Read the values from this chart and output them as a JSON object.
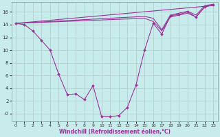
{
  "background_color": "#c8ecec",
  "grid_color": "#b0c8c8",
  "line_color": "#993399",
  "marker_color": "#993399",
  "xlabel": "Windchill (Refroidissement éolien,°C)",
  "xlim": [
    -0.5,
    23.5
  ],
  "ylim": [
    -1.2,
    17.5
  ],
  "yticks": [
    0,
    2,
    4,
    6,
    8,
    10,
    12,
    14,
    16
  ],
  "ytick_labels": [
    "-0",
    "2",
    "4",
    "6",
    "8",
    "10",
    "12",
    "14",
    "16"
  ],
  "xticks": [
    0,
    1,
    2,
    3,
    4,
    5,
    6,
    7,
    8,
    9,
    10,
    11,
    12,
    13,
    14,
    15,
    16,
    17,
    18,
    19,
    20,
    21,
    22,
    23
  ],
  "curve_main_x": [
    0,
    1,
    2,
    3,
    4,
    5,
    6,
    7,
    8,
    9,
    10,
    11,
    12,
    13,
    14,
    15,
    16,
    17,
    18,
    19,
    20,
    21,
    22,
    23
  ],
  "curve_main_y": [
    14.2,
    14.0,
    13.0,
    11.5,
    10.0,
    6.2,
    3.0,
    3.1,
    2.2,
    4.4,
    -0.5,
    -0.5,
    -0.3,
    1.0,
    4.5,
    10.0,
    14.2,
    12.5,
    15.4,
    15.6,
    16.0,
    15.2,
    16.8,
    17.1
  ],
  "curve_line1_x": [
    0,
    23
  ],
  "curve_line1_y": [
    14.2,
    17.0
  ],
  "curve_line2_x": [
    0,
    15,
    16,
    17,
    18,
    19,
    20,
    21,
    22,
    23
  ],
  "curve_line2_y": [
    14.2,
    15.0,
    14.5,
    13.0,
    15.2,
    15.5,
    15.8,
    15.2,
    16.8,
    17.1
  ],
  "curve_line3_x": [
    0,
    15,
    16,
    17,
    18,
    19,
    20,
    21,
    22,
    23
  ],
  "curve_line3_y": [
    14.2,
    15.3,
    15.0,
    13.2,
    15.5,
    15.8,
    16.1,
    15.5,
    17.0,
    17.2
  ]
}
